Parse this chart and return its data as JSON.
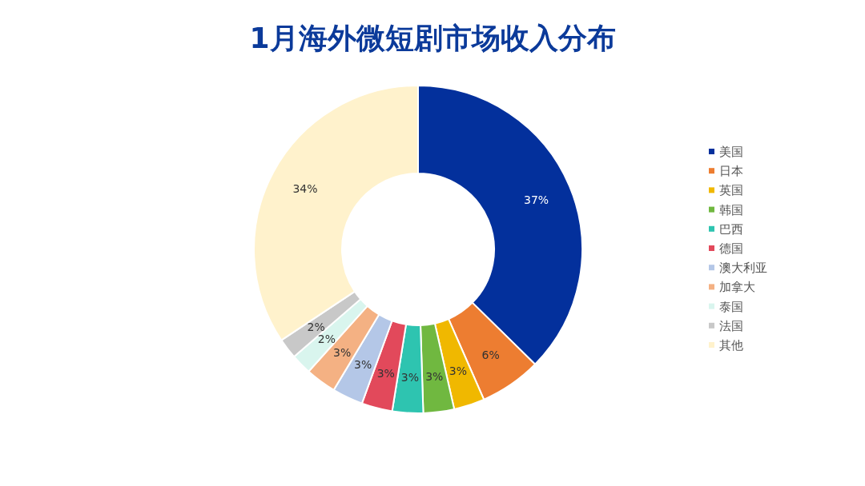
{
  "chart_data": {
    "type": "donut",
    "title": "1月海外微短剧市场收入分布",
    "categories": [
      "美国",
      "日本",
      "英国",
      "韩国",
      "巴西",
      "德国",
      "澳大利亚",
      "加拿大",
      "泰国",
      "法国",
      "其他"
    ],
    "values": [
      37,
      6,
      3,
      3,
      3,
      3,
      3,
      3,
      2,
      2,
      34
    ],
    "colors": [
      "#03309c",
      "#ed7d31",
      "#f0b800",
      "#70b840",
      "#2ec4b0",
      "#e2495b",
      "#b4c7e7",
      "#f4b183",
      "#d9f5ee",
      "#c8c8c8",
      "#fff2cc"
    ],
    "value_labels": [
      "37%",
      "6%",
      "3%",
      "3%",
      "3%",
      "3%",
      "3%",
      "3%",
      "2%",
      "2%",
      "34%"
    ],
    "legend": "right"
  }
}
